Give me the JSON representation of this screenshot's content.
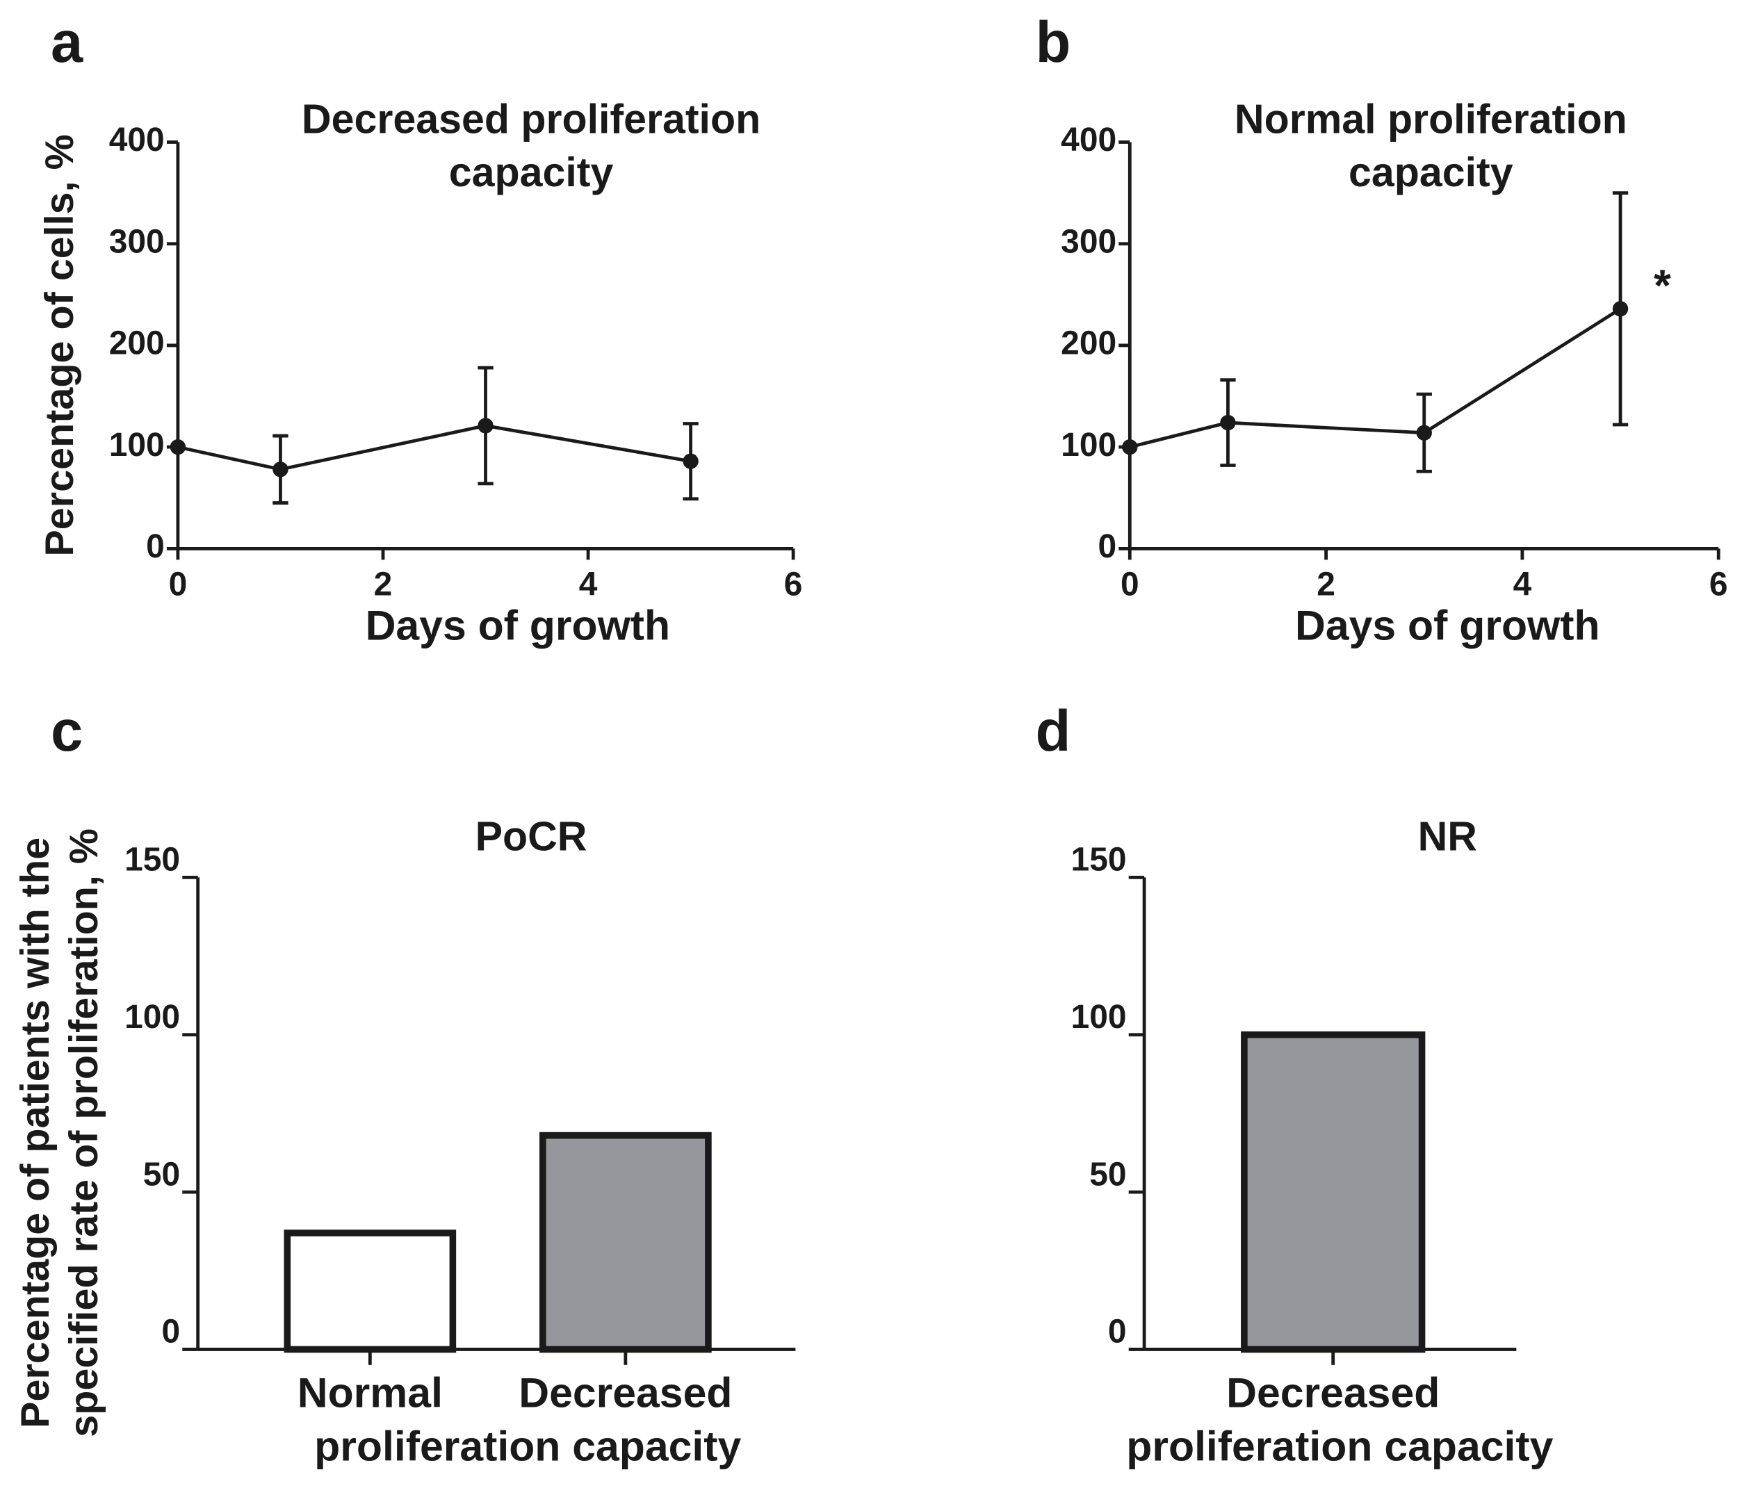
{
  "chart_data": [
    {
      "type": "line",
      "panel_label": "a",
      "title": [
        "Decreased proliferation",
        "capacity"
      ],
      "x_label": "Days of growth",
      "y_label": "Percentage of cells, %",
      "x": [
        0,
        1,
        3,
        5
      ],
      "series": [
        {
          "color": "#1a1a1a",
          "values": [
            100,
            78,
            121,
            86
          ],
          "errors": [
            0,
            33,
            57,
            37
          ]
        }
      ],
      "xlim": [
        0,
        6
      ],
      "xticks": [
        0,
        2,
        4,
        6
      ],
      "ylim": [
        0,
        400
      ],
      "yticks": [
        0,
        100,
        200,
        300,
        400
      ]
    },
    {
      "type": "line",
      "panel_label": "b",
      "title": [
        "Normal proliferation",
        "capacity"
      ],
      "x_label": "Days of growth",
      "x": [
        0,
        1,
        3,
        5
      ],
      "series": [
        {
          "color": "#1a1a1a",
          "values": [
            100,
            124,
            114,
            236
          ],
          "errors": [
            0,
            42,
            38,
            114
          ]
        }
      ],
      "annotation": "*",
      "xlim": [
        0,
        6
      ],
      "xticks": [
        0,
        2,
        4,
        6
      ],
      "ylim": [
        0,
        400
      ],
      "yticks": [
        0,
        100,
        200,
        300,
        400
      ]
    },
    {
      "type": "bar",
      "panel_label": "c",
      "title": "PoCR",
      "x_label": "proliferation capacity",
      "y_label": [
        "Percentage of patients with the",
        "specified rate of proliferation, %"
      ],
      "categories": [
        "Normal",
        "Decreased"
      ],
      "values": [
        37,
        68
      ],
      "colors": [
        "#ffffff",
        "#96979c"
      ],
      "ylim": [
        0,
        150
      ],
      "yticks": [
        0,
        50,
        100,
        150
      ]
    },
    {
      "type": "bar",
      "panel_label": "d",
      "title": "NR",
      "x_label": "proliferation capacity",
      "categories": [
        "Decreased"
      ],
      "values": [
        100
      ],
      "colors": [
        "#96979c"
      ],
      "ylim": [
        0,
        150
      ],
      "yticks": [
        0,
        50,
        100,
        150
      ]
    }
  ]
}
